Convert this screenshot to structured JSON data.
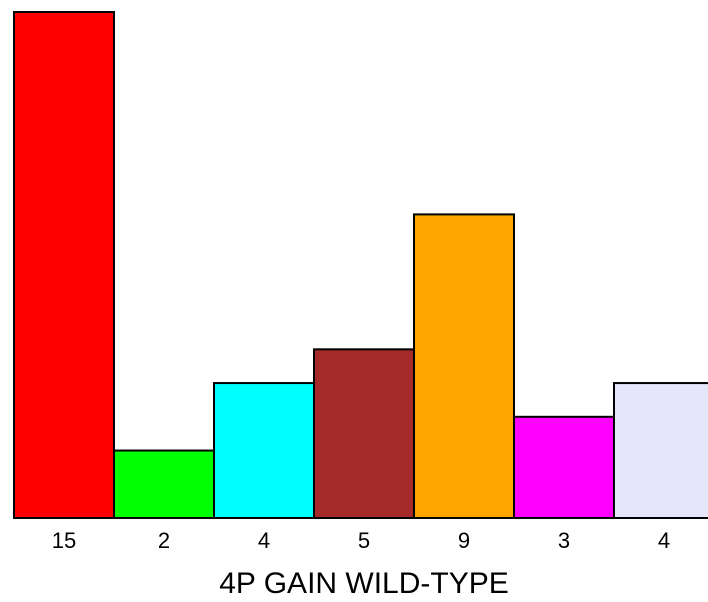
{
  "chart_data": {
    "type": "bar",
    "categories": [
      "15",
      "2",
      "4",
      "5",
      "9",
      "3",
      "4"
    ],
    "values": [
      15,
      2,
      4,
      5,
      9,
      3,
      4
    ],
    "colors": [
      "#ff0000",
      "#00ff00",
      "#00ffff",
      "#a52a2a",
      "#ffa500",
      "#ff00ff",
      "#e6e6fa"
    ],
    "title": "",
    "xlabel": "4P GAIN WILD-TYPE",
    "ylabel": "",
    "ylim": [
      0,
      15
    ],
    "grid": false,
    "legend": "none"
  }
}
